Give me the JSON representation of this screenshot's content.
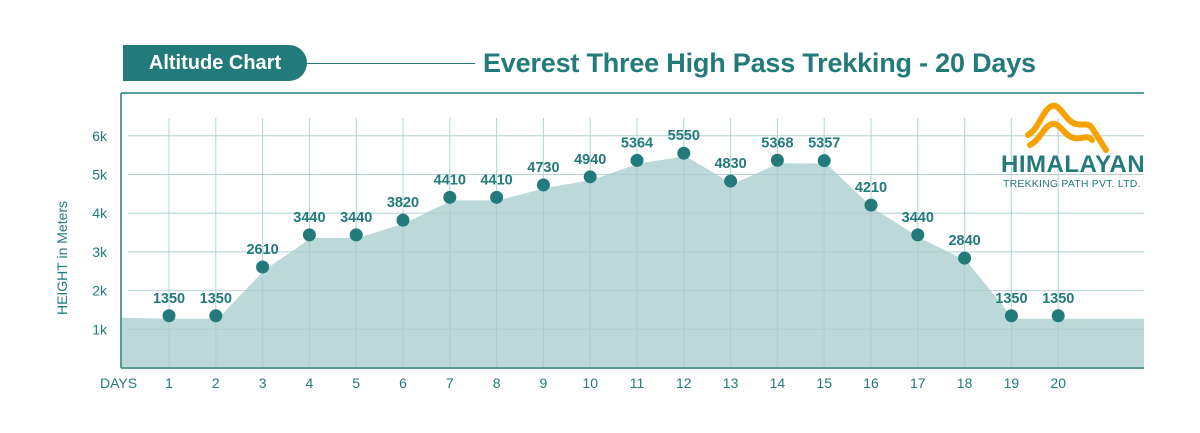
{
  "header": {
    "badge_label": "Altitude Chart",
    "title": "Everest Three High Pass Trekking - 20 Days"
  },
  "logo": {
    "name": "HIMALAYAN",
    "subtitle": "TREKKING PATH PVT. LTD.",
    "mark_color": "#f5a300"
  },
  "colors": {
    "primary": "#237a7a",
    "area_fill": "#b9d6d7",
    "grid": "#d3e6e6",
    "logo_orange": "#f5a300"
  },
  "chart_data": {
    "type": "area",
    "title": "Everest Three High Pass Trekking - 20 Days",
    "xlabel": "DAYS",
    "ylabel": "HEIGHT in Meters",
    "categories": [
      "1",
      "2",
      "3",
      "4",
      "5",
      "6",
      "7",
      "8",
      "9",
      "10",
      "11",
      "12",
      "13",
      "14",
      "15",
      "16",
      "17",
      "18",
      "19",
      "20"
    ],
    "values": [
      1350,
      1350,
      2610,
      3440,
      3440,
      3820,
      4410,
      4410,
      4730,
      4940,
      5364,
      5550,
      4830,
      5368,
      5357,
      4210,
      3440,
      2840,
      1350,
      1350
    ],
    "y_ticks": [
      "1k",
      "2k",
      "3k",
      "4k",
      "5k",
      "6k"
    ],
    "ylim": [
      0,
      6500
    ],
    "grid": true,
    "legend": null,
    "data_labels": true
  }
}
